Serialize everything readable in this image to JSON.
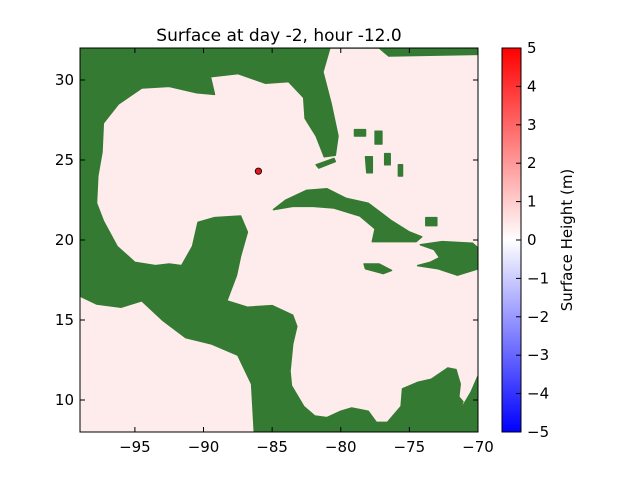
{
  "chart_data": {
    "type": "heatmap",
    "title": "Surface at day  -2, hour -12.0",
    "xlim": [
      -99,
      -70
    ],
    "ylim": [
      8,
      32
    ],
    "xticks": [
      -95,
      -90,
      -85,
      -80,
      -75,
      -70
    ],
    "xtick_labels": [
      "−95",
      "−90",
      "−85",
      "−80",
      "−75",
      "−70"
    ],
    "yticks": [
      10,
      15,
      20,
      25,
      30
    ],
    "ytick_labels": [
      "10",
      "15",
      "20",
      "25",
      "30"
    ],
    "colorbar": {
      "label": "Surface Height (m)",
      "range": [
        -5,
        5
      ],
      "ticks": [
        -5,
        -4,
        -3,
        -2,
        -1,
        0,
        1,
        2,
        3,
        4,
        5
      ],
      "tick_labels": [
        "−5",
        "−4",
        "−3",
        "−2",
        "−1",
        "0",
        "1",
        "2",
        "3",
        "4",
        "5"
      ],
      "colormap": "bwr",
      "colors": {
        "low": "#0000ff",
        "mid": "#ffffff",
        "high": "#ff0000"
      }
    },
    "ocean_surface_height_m": 0.1,
    "ocean_color": "#fdeceb",
    "land_color": "#357a32",
    "land_highlight_color": "#4f8d2c",
    "point_marker": {
      "lon": -86,
      "lat": 24.3,
      "color": "#e8141a"
    },
    "land_polygons": [
      {
        "name": "north-america",
        "points": [
          [
            -99,
            32
          ],
          [
            -70,
            32
          ],
          [
            -70,
            31.6
          ],
          [
            -76.5,
            31.5
          ],
          [
            -78.6,
            33
          ],
          [
            -80.8,
            32
          ],
          [
            -81.3,
            30.5
          ],
          [
            -80.7,
            28.5
          ],
          [
            -80.2,
            26.5
          ],
          [
            -80.4,
            25.3
          ],
          [
            -81.2,
            25.2
          ],
          [
            -81.8,
            26.5
          ],
          [
            -82.6,
            27.6
          ],
          [
            -82.7,
            28.9
          ],
          [
            -83.8,
            29.9
          ],
          [
            -85.5,
            29.8
          ],
          [
            -87.5,
            30.4
          ],
          [
            -89.5,
            30.2
          ],
          [
            -89.2,
            29.1
          ],
          [
            -90.5,
            29.2
          ],
          [
            -92.5,
            29.6
          ],
          [
            -94.5,
            29.5
          ],
          [
            -96.2,
            28.5
          ],
          [
            -97.3,
            27.3
          ],
          [
            -97.4,
            25.5
          ],
          [
            -97.7,
            24
          ],
          [
            -97.8,
            22.3
          ],
          [
            -97.3,
            21.2
          ],
          [
            -96.3,
            19.6
          ],
          [
            -95,
            18.6
          ],
          [
            -93.5,
            18.4
          ],
          [
            -92.5,
            18.5
          ],
          [
            -91.6,
            18.4
          ],
          [
            -90.8,
            19.6
          ],
          [
            -90.4,
            21.1
          ],
          [
            -89.2,
            21.4
          ],
          [
            -87.3,
            21.5
          ],
          [
            -86.8,
            20.5
          ],
          [
            -87.3,
            19
          ],
          [
            -87.6,
            17.8
          ],
          [
            -88.3,
            16.2
          ],
          [
            -86.8,
            15.8
          ],
          [
            -85,
            15.9
          ],
          [
            -83.5,
            15.3
          ],
          [
            -83.2,
            14.6
          ],
          [
            -83.5,
            13.5
          ],
          [
            -83.7,
            11.8
          ],
          [
            -83.6,
            10.9
          ],
          [
            -82.7,
            9.6
          ],
          [
            -81.9,
            9
          ],
          [
            -81,
            8.9
          ],
          [
            -80,
            9.3
          ],
          [
            -79.2,
            9.5
          ],
          [
            -78,
            9.3
          ],
          [
            -77.4,
            8.6
          ],
          [
            -76.6,
            8.6
          ],
          [
            -75.6,
            9.6
          ],
          [
            -75.5,
            10.7
          ],
          [
            -74.4,
            11.1
          ],
          [
            -73.4,
            11.3
          ],
          [
            -72.2,
            12
          ],
          [
            -71.6,
            11.9
          ],
          [
            -71.3,
            11
          ],
          [
            -71.4,
            10.2
          ],
          [
            -71.1,
            9.9
          ],
          [
            -71.4,
            9.2
          ],
          [
            -70.5,
            10.5
          ],
          [
            -70,
            11.5
          ],
          [
            -70,
            8
          ],
          [
            -86.3,
            8
          ],
          [
            -86.5,
            11
          ],
          [
            -87.5,
            12.8
          ],
          [
            -89.4,
            13.5
          ],
          [
            -91.3,
            13.9
          ],
          [
            -93,
            15
          ],
          [
            -94.5,
            16.2
          ],
          [
            -96,
            15.8
          ],
          [
            -97.8,
            16
          ],
          [
            -99,
            16.5
          ]
        ]
      },
      {
        "name": "cuba",
        "points": [
          [
            -84.9,
            21.9
          ],
          [
            -84,
            22.5
          ],
          [
            -82.5,
            23.1
          ],
          [
            -81,
            23.2
          ],
          [
            -79.6,
            22.6
          ],
          [
            -78,
            22.3
          ],
          [
            -76.3,
            21.2
          ],
          [
            -75,
            20.5
          ],
          [
            -74.1,
            20.2
          ],
          [
            -74.5,
            19.9
          ],
          [
            -76,
            19.9
          ],
          [
            -77.7,
            19.9
          ],
          [
            -77.5,
            20.7
          ],
          [
            -78.6,
            21.5
          ],
          [
            -80.5,
            22
          ],
          [
            -82,
            22.1
          ],
          [
            -83.5,
            22.1
          ]
        ]
      },
      {
        "name": "hispaniola",
        "points": [
          [
            -74.2,
            19.7
          ],
          [
            -72.6,
            19.9
          ],
          [
            -70.4,
            19.8
          ],
          [
            -70,
            19.5
          ],
          [
            -70,
            18.2
          ],
          [
            -71.5,
            17.8
          ],
          [
            -72.9,
            18.2
          ],
          [
            -74.4,
            18.4
          ],
          [
            -73.5,
            18.6
          ],
          [
            -72.8,
            18.9
          ],
          [
            -73.2,
            19.4
          ]
        ]
      },
      {
        "name": "jamaica",
        "points": [
          [
            -78.3,
            18.5
          ],
          [
            -77.2,
            18.5
          ],
          [
            -76.3,
            18.1
          ],
          [
            -76.9,
            17.9
          ],
          [
            -78.2,
            18.2
          ]
        ]
      },
      {
        "name": "florida-keys",
        "points": [
          [
            -81.8,
            24.7
          ],
          [
            -80.5,
            25.1
          ],
          [
            -80.4,
            24.9
          ],
          [
            -81.6,
            24.5
          ]
        ]
      },
      {
        "name": "bahamas-andros",
        "points": [
          [
            -78.2,
            25.2
          ],
          [
            -77.7,
            25.2
          ],
          [
            -77.7,
            24.2
          ],
          [
            -78.1,
            24.2
          ]
        ]
      },
      {
        "name": "bahamas-abaco",
        "points": [
          [
            -77.5,
            26.8
          ],
          [
            -77,
            26.8
          ],
          [
            -77,
            26
          ],
          [
            -77.5,
            26
          ]
        ]
      },
      {
        "name": "bahamas-grand",
        "points": [
          [
            -79,
            26.9
          ],
          [
            -78.2,
            26.9
          ],
          [
            -78.2,
            26.5
          ],
          [
            -79,
            26.5
          ]
        ]
      },
      {
        "name": "bahamas-eleuthera",
        "points": [
          [
            -76.8,
            25.4
          ],
          [
            -76.4,
            25.4
          ],
          [
            -76.4,
            24.7
          ],
          [
            -76.8,
            24.7
          ]
        ]
      },
      {
        "name": "bahamas-cat",
        "points": [
          [
            -75.8,
            24.7
          ],
          [
            -75.5,
            24.7
          ],
          [
            -75.5,
            24
          ],
          [
            -75.8,
            24
          ]
        ]
      },
      {
        "name": "bahamas-inagua",
        "points": [
          [
            -73.8,
            21.4
          ],
          [
            -73,
            21.4
          ],
          [
            -73,
            20.9
          ],
          [
            -73.8,
            20.9
          ]
        ]
      }
    ]
  }
}
